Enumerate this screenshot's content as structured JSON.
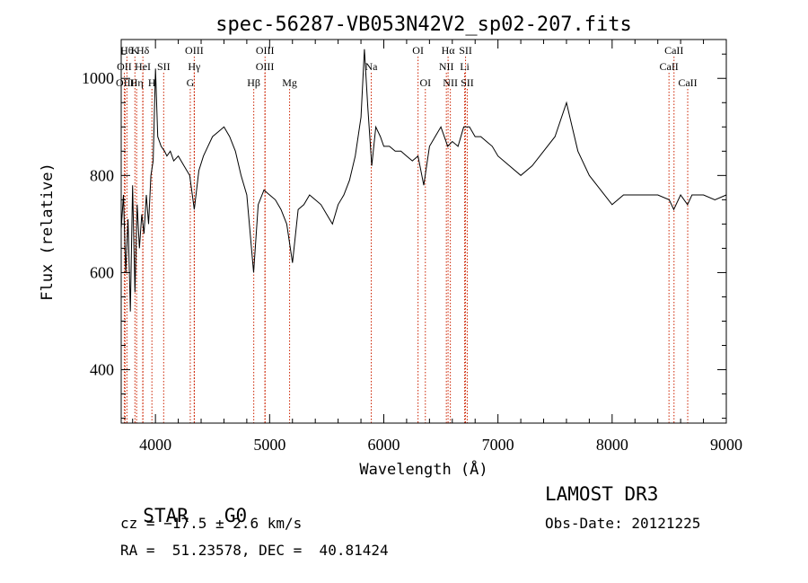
{
  "chart_data": {
    "type": "line",
    "title": "spec-56287-VB053N42V2_sp02-207.fits",
    "xlabel": "Wavelength (Å)",
    "ylabel": "Flux (relative)",
    "xlim": [
      3700,
      9000
    ],
    "ylim": [
      290,
      1080
    ],
    "xticks": [
      4000,
      5000,
      6000,
      7000,
      8000,
      9000
    ],
    "yticks": [
      400,
      600,
      800,
      1000
    ],
    "line_color": "#000000",
    "marker_color": "#cc2200",
    "series": [
      {
        "x": [
          3700,
          3720,
          3740,
          3760,
          3780,
          3800,
          3820,
          3840,
          3860,
          3880,
          3900,
          3920,
          3940,
          3960,
          3980,
          4000,
          4020,
          4050,
          4080,
          4100,
          4130,
          4160,
          4200,
          4250,
          4300,
          4340,
          4380,
          4420,
          4460,
          4500,
          4550,
          4600,
          4650,
          4700,
          4750,
          4800,
          4860,
          4900,
          4950,
          5000,
          5050,
          5100,
          5150,
          5200,
          5250,
          5300,
          5350,
          5400,
          5450,
          5500,
          5550,
          5600,
          5650,
          5700,
          5750,
          5800,
          5830,
          5860,
          5895,
          5930,
          5970,
          6000,
          6050,
          6100,
          6150,
          6200,
          6250,
          6300,
          6350,
          6400,
          6450,
          6500,
          6560,
          6600,
          6650,
          6700,
          6750,
          6800,
          6850,
          6900,
          6950,
          7000,
          7100,
          7200,
          7300,
          7400,
          7500,
          7600,
          7650,
          7700,
          7800,
          7900,
          8000,
          8100,
          8200,
          8300,
          8400,
          8500,
          8540,
          8600,
          8660,
          8700,
          8800,
          8900,
          9000
        ],
        "y": [
          690,
          760,
          600,
          710,
          520,
          780,
          560,
          740,
          650,
          720,
          680,
          760,
          700,
          800,
          830,
          1020,
          880,
          860,
          850,
          840,
          850,
          830,
          840,
          820,
          800,
          730,
          810,
          840,
          860,
          880,
          890,
          900,
          880,
          850,
          800,
          760,
          600,
          740,
          770,
          760,
          750,
          730,
          700,
          620,
          730,
          740,
          760,
          750,
          740,
          720,
          700,
          740,
          760,
          790,
          840,
          920,
          1060,
          940,
          820,
          900,
          880,
          860,
          860,
          850,
          850,
          840,
          830,
          840,
          780,
          860,
          880,
          900,
          860,
          870,
          860,
          900,
          900,
          880,
          880,
          870,
          860,
          840,
          820,
          800,
          820,
          850,
          880,
          950,
          900,
          850,
          800,
          770,
          740,
          760,
          760,
          760,
          760,
          750,
          730,
          760,
          740,
          760,
          760,
          750,
          760
        ]
      }
    ],
    "line_markers": [
      {
        "x": 3750,
        "label": "H&#952;",
        "row": 0
      },
      {
        "x": 3820,
        "label": "K",
        "row": 0
      },
      {
        "x": 3890,
        "label": "H&#948;",
        "row": 0
      },
      {
        "x": 4340,
        "label": "OIII",
        "row": 0
      },
      {
        "x": 4960,
        "label": "OIII",
        "row": 0
      },
      {
        "x": 6300,
        "label": "OI",
        "row": 0
      },
      {
        "x": 6563,
        "label": "H&#945;",
        "row": 0
      },
      {
        "x": 6716,
        "label": "SII",
        "row": 0
      },
      {
        "x": 8542,
        "label": "CaII",
        "row": 0
      },
      {
        "x": 3727,
        "label": "OII",
        "row": 1
      },
      {
        "x": 3889,
        "label": "HeI",
        "row": 1
      },
      {
        "x": 4072,
        "label": "SII",
        "row": 1
      },
      {
        "x": 4340,
        "label": "H&#947;",
        "row": 1
      },
      {
        "x": 4959,
        "label": "OIII",
        "row": 1
      },
      {
        "x": 5890,
        "label": "Na",
        "row": 1
      },
      {
        "x": 6548,
        "label": "NII",
        "row": 1
      },
      {
        "x": 6708,
        "label": "Li",
        "row": 1
      },
      {
        "x": 8498,
        "label": "CaII",
        "row": 1
      },
      {
        "x": 3734,
        "label": "OIII",
        "row": 2
      },
      {
        "x": 3835,
        "label": "H&#951;",
        "row": 2
      },
      {
        "x": 3969,
        "label": "H",
        "row": 2
      },
      {
        "x": 4305,
        "label": "G",
        "row": 2
      },
      {
        "x": 4861,
        "label": "H&#946;",
        "row": 2
      },
      {
        "x": 5175,
        "label": "Mg",
        "row": 2
      },
      {
        "x": 6364,
        "label": "OI",
        "row": 2
      },
      {
        "x": 6583,
        "label": "NII",
        "row": 2
      },
      {
        "x": 6731,
        "label": "SII",
        "row": 2
      },
      {
        "x": 8662,
        "label": "CaII",
        "row": 2
      }
    ]
  },
  "info": {
    "class_label": "STAR",
    "subclass_label": "G0",
    "survey": "LAMOST DR3",
    "redshift": "cz = −17.5 ± 2.6 km/s",
    "obs_date": "Obs-Date: 20121225",
    "coords": "RA =  51.23578, DEC =  40.81424"
  }
}
